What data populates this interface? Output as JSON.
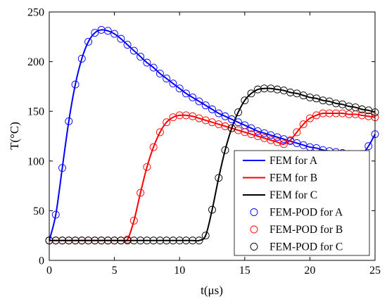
{
  "chart_data": {
    "type": "line",
    "xlabel": "t(μs)",
    "ylabel": "T(°C)",
    "xlim": [
      0,
      25
    ],
    "ylim": [
      0,
      250
    ],
    "xticks": [
      0,
      5,
      10,
      15,
      20,
      25
    ],
    "yticks": [
      0,
      50,
      100,
      150,
      200,
      250
    ],
    "x_tick_labels": [
      "0",
      "5",
      "10",
      "15",
      "20",
      "25"
    ],
    "y_tick_labels": [
      "0",
      "50",
      "100",
      "150",
      "200",
      "250"
    ],
    "grid": false,
    "legend_position": "bottom-right",
    "series": [
      {
        "name": "FEM for A",
        "style": "line",
        "color": "#0000ff",
        "x": [
          0,
          0.5,
          1,
          1.5,
          2,
          2.5,
          3,
          3.5,
          4,
          4.5,
          5,
          5.5,
          6,
          6.5,
          7,
          7.5,
          8,
          8.5,
          9,
          9.5,
          10,
          10.5,
          11,
          11.5,
          12,
          12.5,
          13,
          13.5,
          14,
          14.5,
          15,
          15.5,
          16,
          16.5,
          17,
          17.5,
          18,
          18.5,
          19,
          19.5,
          20,
          20.5,
          21,
          21.5,
          22,
          22.5,
          23,
          23.5,
          24,
          24.5,
          25
        ],
        "values": [
          20,
          46,
          93,
          140,
          177,
          203,
          220,
          229,
          232,
          231,
          228,
          223,
          217,
          211,
          205,
          199,
          194,
          188,
          183,
          178,
          173,
          168,
          164,
          160,
          156,
          152,
          148,
          145,
          142,
          139,
          136,
          133,
          130,
          128,
          126,
          124,
          122,
          120,
          118,
          116,
          114,
          113,
          111,
          110,
          109,
          108,
          107,
          106,
          107,
          115,
          127
        ]
      },
      {
        "name": "FEM for B",
        "style": "line",
        "color": "#ff0000",
        "x": [
          0,
          0.5,
          1,
          1.5,
          2,
          2.5,
          3,
          3.5,
          4,
          4.5,
          5,
          5.5,
          6,
          6.5,
          7,
          7.5,
          8,
          8.5,
          9,
          9.5,
          10,
          10.5,
          11,
          11.5,
          12,
          12.5,
          13,
          13.5,
          14,
          14.5,
          15,
          15.5,
          16,
          16.5,
          17,
          17.5,
          18,
          18.5,
          19,
          19.5,
          20,
          20.5,
          21,
          21.5,
          22,
          22.5,
          23,
          23.5,
          24,
          24.5,
          25
        ],
        "values": [
          20,
          20,
          20,
          20,
          20,
          20,
          20,
          20,
          20,
          20,
          20,
          20,
          21,
          40,
          68,
          94,
          114,
          129,
          139,
          144,
          146,
          146,
          145,
          143,
          141,
          139,
          137,
          135,
          133,
          131,
          129,
          127,
          125,
          123,
          121,
          119,
          117,
          121,
          129,
          137,
          143,
          146,
          148,
          148,
          148,
          148,
          147,
          147,
          146,
          145,
          144
        ]
      },
      {
        "name": "FEM for C",
        "style": "line",
        "color": "#000000",
        "x": [
          0,
          0.5,
          1,
          1.5,
          2,
          2.5,
          3,
          3.5,
          4,
          4.5,
          5,
          5.5,
          6,
          6.5,
          7,
          7.5,
          8,
          8.5,
          9,
          9.5,
          10,
          10.5,
          11,
          11.5,
          12,
          12.5,
          13,
          13.5,
          14,
          14.5,
          15,
          15.5,
          16,
          16.5,
          17,
          17.5,
          18,
          18.5,
          19,
          19.5,
          20,
          20.5,
          21,
          21.5,
          22,
          22.5,
          23,
          23.5,
          24,
          24.5,
          25
        ],
        "values": [
          20,
          20,
          20,
          20,
          20,
          20,
          20,
          20,
          20,
          20,
          20,
          20,
          20,
          20,
          20,
          20,
          20,
          20,
          20,
          20,
          20,
          20,
          20,
          20,
          25,
          51,
          83,
          111,
          133,
          149,
          161,
          168,
          172,
          173,
          173,
          172,
          171,
          169,
          168,
          166,
          164,
          163,
          161,
          160,
          158,
          157,
          155,
          154,
          152,
          151,
          149
        ]
      },
      {
        "name": "FEM-POD for A",
        "style": "markers",
        "color": "#0000ff",
        "x": [
          0,
          0.5,
          1,
          1.5,
          2,
          2.5,
          3,
          3.5,
          4,
          4.5,
          5,
          5.5,
          6,
          6.5,
          7,
          7.5,
          8,
          8.5,
          9,
          9.5,
          10,
          10.5,
          11,
          11.5,
          12,
          12.5,
          13,
          13.5,
          14,
          14.5,
          15,
          15.5,
          16,
          16.5,
          17,
          17.5,
          18,
          18.5,
          19,
          19.5,
          20,
          20.5,
          21,
          21.5,
          22,
          22.5,
          23,
          23.5,
          24,
          24.5,
          25
        ],
        "values": [
          20,
          46,
          93,
          140,
          177,
          203,
          220,
          229,
          232,
          231,
          228,
          223,
          217,
          211,
          205,
          199,
          194,
          188,
          183,
          178,
          173,
          168,
          164,
          160,
          156,
          152,
          148,
          145,
          142,
          139,
          136,
          133,
          130,
          128,
          126,
          124,
          122,
          120,
          118,
          116,
          114,
          113,
          111,
          110,
          109,
          108,
          107,
          106,
          107,
          115,
          127
        ]
      },
      {
        "name": "FEM-POD for B",
        "style": "markers",
        "color": "#ff0000",
        "x": [
          0,
          0.5,
          1,
          1.5,
          2,
          2.5,
          3,
          3.5,
          4,
          4.5,
          5,
          5.5,
          6,
          6.5,
          7,
          7.5,
          8,
          8.5,
          9,
          9.5,
          10,
          10.5,
          11,
          11.5,
          12,
          12.5,
          13,
          13.5,
          14,
          14.5,
          15,
          15.5,
          16,
          16.5,
          17,
          17.5,
          18,
          18.5,
          19,
          19.5,
          20,
          20.5,
          21,
          21.5,
          22,
          22.5,
          23,
          23.5,
          24,
          24.5,
          25
        ],
        "values": [
          20,
          20,
          20,
          20,
          20,
          20,
          20,
          20,
          20,
          20,
          20,
          20,
          21,
          40,
          68,
          94,
          114,
          129,
          139,
          144,
          146,
          146,
          145,
          143,
          141,
          139,
          137,
          135,
          133,
          131,
          129,
          127,
          125,
          123,
          121,
          119,
          117,
          121,
          129,
          137,
          143,
          146,
          148,
          148,
          148,
          148,
          147,
          147,
          146,
          145,
          144
        ]
      },
      {
        "name": "FEM-POD for C",
        "style": "markers",
        "color": "#000000",
        "x": [
          0,
          0.5,
          1,
          1.5,
          2,
          2.5,
          3,
          3.5,
          4,
          4.5,
          5,
          5.5,
          6,
          6.5,
          7,
          7.5,
          8,
          8.5,
          9,
          9.5,
          10,
          10.5,
          11,
          11.5,
          12,
          12.5,
          13,
          13.5,
          14,
          14.5,
          15,
          15.5,
          16,
          16.5,
          17,
          17.5,
          18,
          18.5,
          19,
          19.5,
          20,
          20.5,
          21,
          21.5,
          22,
          22.5,
          23,
          23.5,
          24,
          24.5,
          25
        ],
        "values": [
          20,
          20,
          20,
          20,
          20,
          20,
          20,
          20,
          20,
          20,
          20,
          20,
          20,
          20,
          20,
          20,
          20,
          20,
          20,
          20,
          20,
          20,
          20,
          20,
          25,
          51,
          83,
          111,
          133,
          149,
          161,
          168,
          172,
          173,
          173,
          172,
          171,
          169,
          168,
          166,
          164,
          163,
          161,
          160,
          158,
          157,
          155,
          154,
          152,
          151,
          149
        ]
      }
    ]
  }
}
